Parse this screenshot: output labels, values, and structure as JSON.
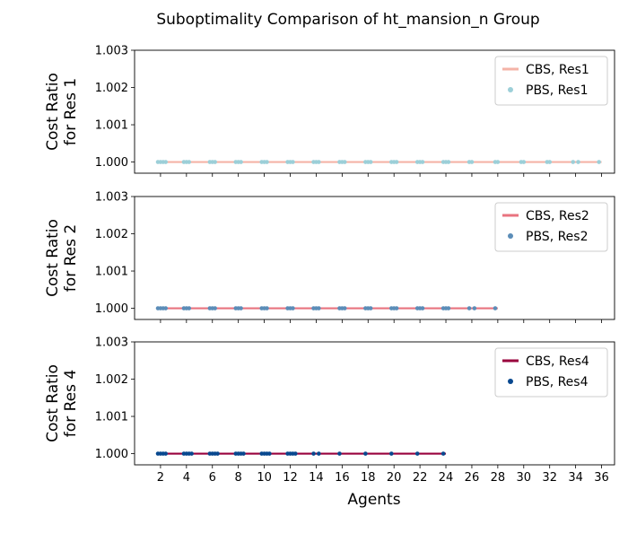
{
  "chart_data": {
    "type": "scatter",
    "title": "Suboptimality Comparison of ht_mansion_n Group",
    "xlabel": "Agents",
    "xlim": [
      0,
      37
    ],
    "x_ticks": [
      "2",
      "4",
      "6",
      "8",
      "10",
      "12",
      "14",
      "16",
      "18",
      "20",
      "22",
      "24",
      "26",
      "28",
      "30",
      "32",
      "34",
      "36"
    ],
    "grid": false,
    "legend_placement": "top-right",
    "panels": [
      {
        "ylabel_lines": [
          "Cost Ratio",
          "for Res 1"
        ],
        "ylim": [
          0.9997,
          1.003
        ],
        "y_ticks": [
          "1.000",
          "1.001",
          "1.002",
          "1.003"
        ],
        "series": [
          {
            "name": "CBS, Res1",
            "kind": "line",
            "color": "#f4b3a7",
            "x": [
              1.8,
              36
            ],
            "y": [
              1.0,
              1.0
            ]
          },
          {
            "name": "PBS, Res1",
            "kind": "scatter",
            "color": "#9ccfd8",
            "x": [
              1.8,
              2,
              2.2,
              2.4,
              3.8,
              4,
              4.2,
              5.8,
              6,
              6.2,
              7.8,
              8,
              8.2,
              9.8,
              10,
              10.2,
              11.8,
              12,
              12.2,
              13.8,
              14,
              14.2,
              15.8,
              16,
              16.2,
              17.8,
              18,
              18.2,
              19.8,
              20,
              20.2,
              21.8,
              22,
              22.2,
              23.8,
              24,
              24.2,
              25.8,
              26,
              27.8,
              28,
              29.8,
              30,
              31.8,
              32,
              33.8,
              34.2,
              35.8
            ],
            "y": [
              1.0,
              1.0,
              1.0,
              1.0,
              1.0,
              1.0,
              1.0,
              1.0,
              1.0,
              1.0,
              1.0,
              1.0,
              1.0,
              1.0,
              1.0,
              1.0,
              1.0,
              1.0,
              1.0,
              1.0,
              1.0,
              1.0,
              1.0,
              1.0,
              1.0,
              1.0,
              1.0,
              1.0,
              1.0,
              1.0,
              1.0,
              1.0,
              1.0,
              1.0,
              1.0,
              1.0,
              1.0,
              1.0,
              1.0,
              1.0,
              1.0,
              1.0,
              1.0,
              1.0,
              1.0,
              1.0,
              1.0,
              1.0
            ]
          }
        ]
      },
      {
        "ylabel_lines": [
          "Cost Ratio",
          "for Res 2"
        ],
        "ylim": [
          0.9997,
          1.003
        ],
        "y_ticks": [
          "1.000",
          "1.001",
          "1.002",
          "1.003"
        ],
        "series": [
          {
            "name": "CBS, Res2",
            "kind": "line",
            "color": "#e8737f",
            "x": [
              1.8,
              28
            ],
            "y": [
              1.0,
              1.0
            ]
          },
          {
            "name": "PBS, Res2",
            "kind": "scatter",
            "color": "#5b8db8",
            "x": [
              1.8,
              2,
              2.2,
              2.4,
              3.8,
              4,
              4.2,
              5.8,
              6,
              6.2,
              7.8,
              8,
              8.2,
              9.8,
              10,
              10.2,
              11.8,
              12,
              12.2,
              13.8,
              14,
              14.2,
              15.8,
              16,
              16.2,
              17.8,
              18,
              18.2,
              19.8,
              20,
              20.2,
              21.8,
              22,
              22.2,
              23.8,
              24,
              24.2,
              25.8,
              26.2,
              27.8
            ],
            "y": [
              1.0,
              1.0,
              1.0,
              1.0,
              1.0,
              1.0,
              1.0,
              1.0,
              1.0,
              1.0,
              1.0,
              1.0,
              1.0,
              1.0,
              1.0,
              1.0,
              1.0,
              1.0,
              1.0,
              1.0,
              1.0,
              1.0,
              1.0,
              1.0,
              1.0,
              1.0,
              1.0,
              1.0,
              1.0,
              1.0,
              1.0,
              1.0,
              1.0,
              1.0,
              1.0,
              1.0,
              1.0,
              1.0,
              1.0,
              1.0
            ]
          }
        ]
      },
      {
        "ylabel_lines": [
          "Cost Ratio",
          "for Res 4"
        ],
        "ylim": [
          0.9997,
          1.003
        ],
        "y_ticks": [
          "1.000",
          "1.001",
          "1.002",
          "1.003"
        ],
        "series": [
          {
            "name": "CBS, Res4",
            "kind": "line",
            "color": "#98003c",
            "x": [
              1.8,
              24
            ],
            "y": [
              1.0,
              1.0
            ]
          },
          {
            "name": "PBS, Res4",
            "kind": "scatter",
            "color": "#08488f",
            "x": [
              1.8,
              2,
              2.2,
              2.4,
              3.8,
              4,
              4.2,
              4.4,
              5.8,
              6,
              6.2,
              6.4,
              7.8,
              8,
              8.2,
              8.4,
              9.8,
              10,
              10.2,
              10.4,
              11.8,
              12,
              12.2,
              12.4,
              13.8,
              14.2,
              15.8,
              17.8,
              19.8,
              21.8,
              23.8
            ],
            "y": [
              1.0,
              1.0,
              1.0,
              1.0,
              1.0,
              1.0,
              1.0,
              1.0,
              1.0,
              1.0,
              1.0,
              1.0,
              1.0,
              1.0,
              1.0,
              1.0,
              1.0,
              1.0,
              1.0,
              1.0,
              1.0,
              1.0,
              1.0,
              1.0,
              1.0,
              1.0,
              1.0,
              1.0,
              1.0,
              1.0,
              1.0
            ]
          }
        ]
      }
    ]
  }
}
